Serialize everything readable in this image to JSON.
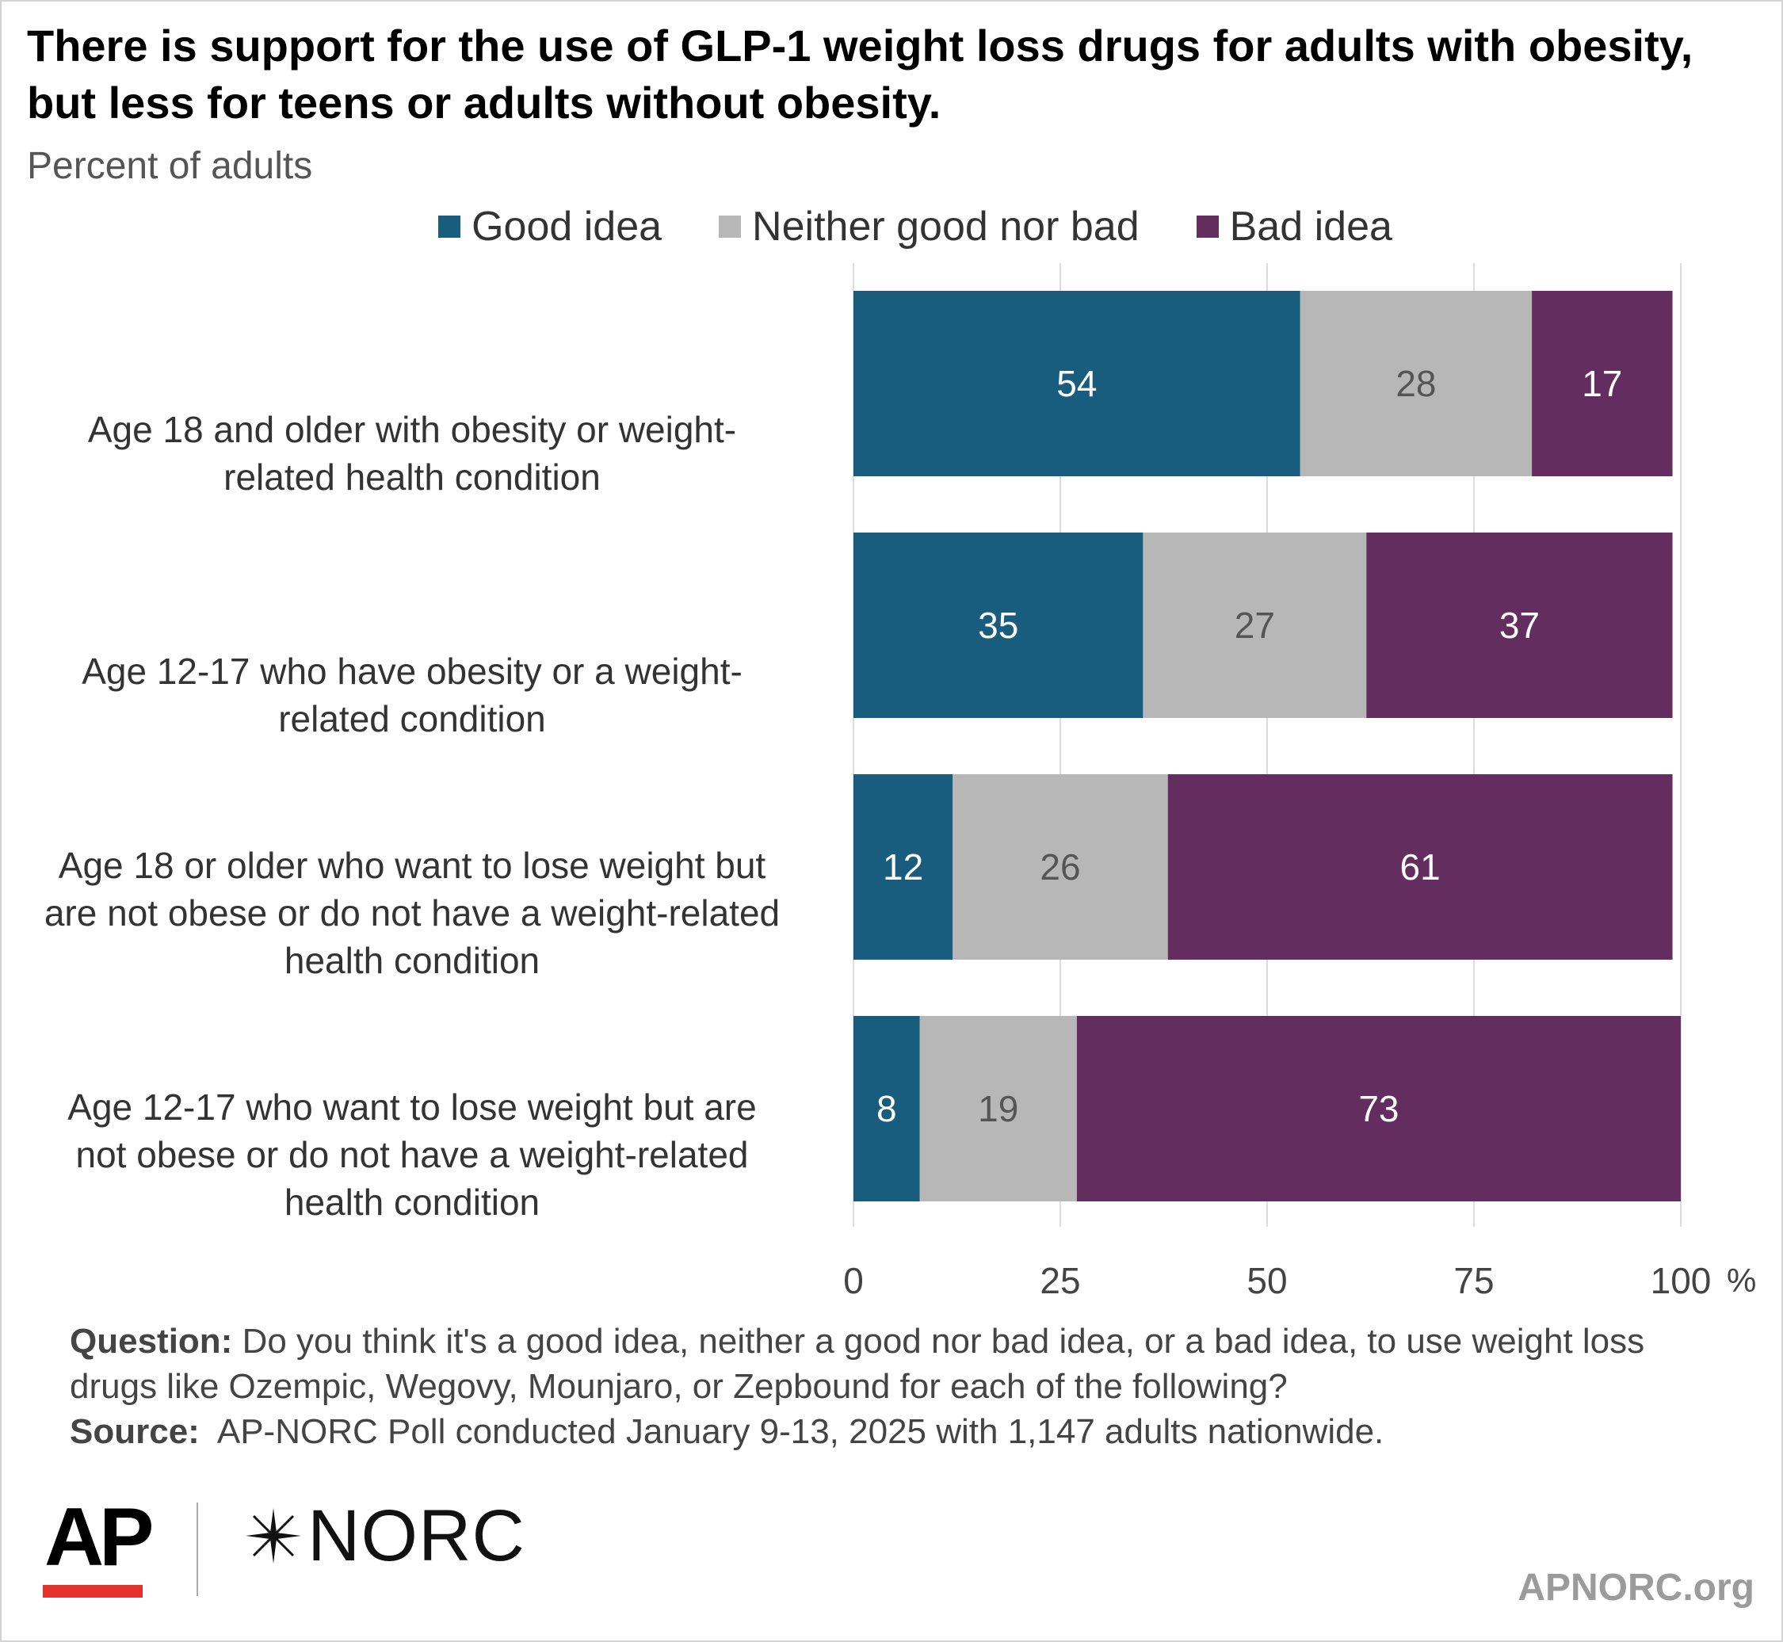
{
  "title": "There is support for the use of GLP-1 weight loss drugs for adults with obesity, but less for teens or adults without obesity.",
  "subtitle": "Percent of adults",
  "legend": [
    {
      "label": "Good idea",
      "color": "#185d7d"
    },
    {
      "label": "Neither good nor bad",
      "color": "#b7b7b7"
    },
    {
      "label": "Bad idea",
      "color": "#642d60"
    }
  ],
  "chart_data": {
    "type": "bar",
    "orientation": "horizontal",
    "stacked": true,
    "categories": [
      "Age 18 and older with obesity or weight-related health condition",
      "Age 12-17 who have obesity or a weight-related condition",
      "Age 18 or older who want to lose weight but are not obese or do not have a weight-related health condition",
      "Age 12-17 who want to lose weight but are not obese or do not have a weight-related health condition"
    ],
    "series": [
      {
        "name": "Good idea",
        "color": "#185d7d",
        "values": [
          54,
          35,
          12,
          8
        ]
      },
      {
        "name": "Neither good nor bad",
        "color": "#b7b7b7",
        "values": [
          28,
          27,
          26,
          19
        ]
      },
      {
        "name": "Bad idea",
        "color": "#642d60",
        "values": [
          17,
          37,
          61,
          73
        ]
      }
    ],
    "xlim": [
      0,
      100
    ],
    "xticks": [
      "0",
      "25",
      "50",
      "75",
      "100"
    ],
    "xunit": "%",
    "grid": true,
    "legend_position": "top"
  },
  "labels_display": [
    [
      "Age 18 and older with obesity or weight-",
      "related health condition"
    ],
    [
      "Age 12-17 who have obesity or a weight-",
      "related condition"
    ],
    [
      "Age 18 or older who want to lose weight but",
      "are not obese or do not have a weight-related",
      "health condition"
    ],
    [
      "Age 12-17 who want to lose weight but are",
      "not obese or do not have a weight-related",
      "health condition"
    ]
  ],
  "notes": {
    "question_label": "Question:",
    "question_text": "Do you think it's a good idea, neither a good nor bad idea, or a bad idea, to use weight loss drugs like Ozempic, Wegovy, Mounjaro, or Zepbound for each of the following?",
    "source_label": "Source:",
    "source_text": "AP-NORC Poll conducted January 9-13, 2025 with 1,147 adults nationwide."
  },
  "branding": {
    "ap": "AP",
    "norc": "NORC",
    "site": "APNORC.org",
    "ap_bar_color": "#e5312c"
  }
}
